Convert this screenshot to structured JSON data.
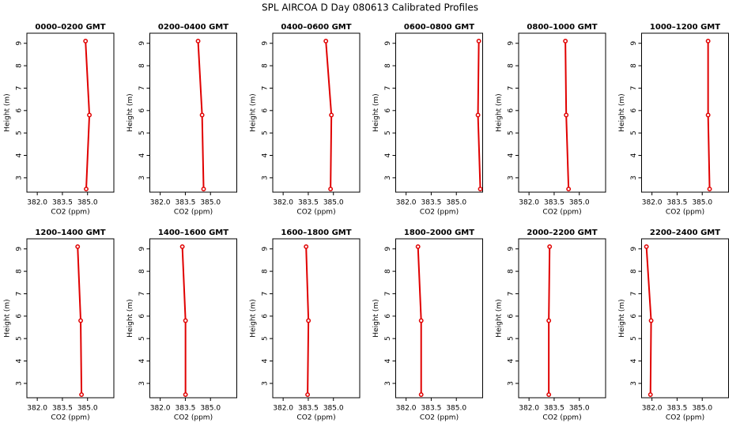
{
  "title": "SPL AIRCOA D  Day 080613  Calibrated Profiles",
  "chart_data": [
    {
      "type": "line",
      "title": "0000–0200 GMT",
      "x": [
        384.88,
        385.11,
        384.92
      ],
      "values": [
        9.1,
        5.8,
        2.5
      ],
      "color": "#e00000",
      "xlabel": "CO2 (ppm)",
      "ylabel": "Height (m)",
      "xlim": [
        381.38,
        386.57
      ],
      "ylim": [
        2.36,
        9.45
      ],
      "xticks": [
        {
          "value": 382,
          "label": "382.0"
        },
        {
          "value": 383.5,
          "label": "383.5"
        },
        {
          "value": 385,
          "label": "385.0"
        }
      ],
      "yticks": [
        3,
        4,
        5,
        6,
        7,
        8,
        9
      ]
    },
    {
      "type": "line",
      "title": "0200–0400 GMT",
      "x": [
        384.26,
        384.5,
        384.59
      ],
      "values": [
        9.1,
        5.8,
        2.5
      ],
      "color": "#e00000",
      "xlabel": "CO2 (ppm)",
      "ylabel": "Height (m)",
      "xlim": [
        381.38,
        386.57
      ],
      "ylim": [
        2.36,
        9.45
      ],
      "xticks": [
        {
          "value": 382,
          "label": "382.0"
        },
        {
          "value": 383.5,
          "label": "383.5"
        },
        {
          "value": 385,
          "label": "385.0"
        }
      ],
      "yticks": [
        3,
        4,
        5,
        6,
        7,
        8,
        9
      ]
    },
    {
      "type": "line",
      "title": "0400–0600 GMT",
      "x": [
        384.55,
        384.88,
        384.83
      ],
      "values": [
        9.1,
        5.8,
        2.5
      ],
      "color": "#e00000",
      "xlabel": "CO2 (ppm)",
      "ylabel": "Height (m)",
      "xlim": [
        381.38,
        386.57
      ],
      "ylim": [
        2.36,
        9.45
      ],
      "xticks": [
        {
          "value": 382,
          "label": "382.0"
        },
        {
          "value": 383.5,
          "label": "383.5"
        },
        {
          "value": 385,
          "label": "385.0"
        }
      ],
      "yticks": [
        3,
        4,
        5,
        6,
        7,
        8,
        9
      ]
    },
    {
      "type": "line",
      "title": "0600–0800 GMT",
      "x": [
        386.34,
        386.29,
        386.43
      ],
      "values": [
        9.1,
        5.8,
        2.5
      ],
      "color": "#e00000",
      "xlabel": "CO2 (ppm)",
      "ylabel": "Height (m)",
      "xlim": [
        381.38,
        386.57
      ],
      "ylim": [
        2.36,
        9.45
      ],
      "xticks": [
        {
          "value": 382,
          "label": "382.0"
        },
        {
          "value": 383.5,
          "label": "383.5"
        },
        {
          "value": 385,
          "label": "385.0"
        }
      ],
      "yticks": [
        3,
        4,
        5,
        6,
        7,
        8,
        9
      ]
    },
    {
      "type": "line",
      "title": "0800–1000 GMT",
      "x": [
        384.17,
        384.22,
        384.36
      ],
      "values": [
        9.1,
        5.8,
        2.5
      ],
      "color": "#e00000",
      "xlabel": "CO2 (ppm)",
      "ylabel": "Height (m)",
      "xlim": [
        381.38,
        386.57
      ],
      "ylim": [
        2.36,
        9.45
      ],
      "xticks": [
        {
          "value": 382,
          "label": "382.0"
        },
        {
          "value": 383.5,
          "label": "383.5"
        },
        {
          "value": 385,
          "label": "385.0"
        }
      ],
      "yticks": [
        3,
        4,
        5,
        6,
        7,
        8,
        9
      ]
    },
    {
      "type": "line",
      "title": "1000–1200 GMT",
      "x": [
        385.35,
        385.35,
        385.44
      ],
      "values": [
        9.1,
        5.8,
        2.5
      ],
      "color": "#e00000",
      "xlabel": "CO2 (ppm)",
      "ylabel": "Height (m)",
      "xlim": [
        381.38,
        386.57
      ],
      "ylim": [
        2.36,
        9.45
      ],
      "xticks": [
        {
          "value": 382,
          "label": "382.0"
        },
        {
          "value": 383.5,
          "label": "383.5"
        },
        {
          "value": 385,
          "label": "385.0"
        }
      ],
      "yticks": [
        3,
        4,
        5,
        6,
        7,
        8,
        9
      ]
    },
    {
      "type": "line",
      "title": "1200–1400 GMT",
      "x": [
        384.41,
        384.59,
        384.64
      ],
      "values": [
        9.1,
        5.8,
        2.5
      ],
      "color": "#e00000",
      "xlabel": "CO2 (ppm)",
      "ylabel": "Height (m)",
      "xlim": [
        381.38,
        386.57
      ],
      "ylim": [
        2.36,
        9.45
      ],
      "xticks": [
        {
          "value": 382,
          "label": "382.0"
        },
        {
          "value": 383.5,
          "label": "383.5"
        },
        {
          "value": 385,
          "label": "385.0"
        }
      ],
      "yticks": [
        3,
        4,
        5,
        6,
        7,
        8,
        9
      ]
    },
    {
      "type": "line",
      "title": "1400–1600 GMT",
      "x": [
        383.32,
        383.51,
        383.51
      ],
      "values": [
        9.1,
        5.8,
        2.5
      ],
      "color": "#e00000",
      "xlabel": "CO2 (ppm)",
      "ylabel": "Height (m)",
      "xlim": [
        381.38,
        386.57
      ],
      "ylim": [
        2.36,
        9.45
      ],
      "xticks": [
        {
          "value": 382,
          "label": "382.0"
        },
        {
          "value": 383.5,
          "label": "383.5"
        },
        {
          "value": 385,
          "label": "385.0"
        }
      ],
      "yticks": [
        3,
        4,
        5,
        6,
        7,
        8,
        9
      ]
    },
    {
      "type": "line",
      "title": "1600–1800 GMT",
      "x": [
        383.37,
        383.51,
        383.46
      ],
      "values": [
        9.1,
        5.8,
        2.5
      ],
      "color": "#e00000",
      "xlabel": "CO2 (ppm)",
      "ylabel": "Height (m)",
      "xlim": [
        381.38,
        386.57
      ],
      "ylim": [
        2.36,
        9.45
      ],
      "xticks": [
        {
          "value": 382,
          "label": "382.0"
        },
        {
          "value": 383.5,
          "label": "383.5"
        },
        {
          "value": 385,
          "label": "385.0"
        }
      ],
      "yticks": [
        3,
        4,
        5,
        6,
        7,
        8,
        9
      ]
    },
    {
      "type": "line",
      "title": "1800–2000 GMT",
      "x": [
        382.71,
        382.9,
        382.9
      ],
      "values": [
        9.1,
        5.8,
        2.5
      ],
      "color": "#e00000",
      "xlabel": "CO2 (ppm)",
      "ylabel": "Height (m)",
      "xlim": [
        381.38,
        386.57
      ],
      "ylim": [
        2.36,
        9.45
      ],
      "xticks": [
        {
          "value": 382,
          "label": "382.0"
        },
        {
          "value": 383.5,
          "label": "383.5"
        },
        {
          "value": 385,
          "label": "385.0"
        }
      ],
      "yticks": [
        3,
        4,
        5,
        6,
        7,
        8,
        9
      ]
    },
    {
      "type": "line",
      "title": "2000–2200 GMT",
      "x": [
        383.23,
        383.18,
        383.18
      ],
      "values": [
        9.1,
        5.8,
        2.5
      ],
      "color": "#e00000",
      "xlabel": "CO2 (ppm)",
      "ylabel": "Height (m)",
      "xlim": [
        381.38,
        386.57
      ],
      "ylim": [
        2.36,
        9.45
      ],
      "xticks": [
        {
          "value": 382,
          "label": "382.0"
        },
        {
          "value": 383.5,
          "label": "383.5"
        },
        {
          "value": 385,
          "label": "385.0"
        }
      ],
      "yticks": [
        3,
        4,
        5,
        6,
        7,
        8,
        9
      ]
    },
    {
      "type": "line",
      "title": "2200–2400 GMT",
      "x": [
        381.67,
        381.95,
        381.91
      ],
      "values": [
        9.1,
        5.8,
        2.5
      ],
      "color": "#e00000",
      "xlabel": "CO2 (ppm)",
      "ylabel": "Height (m)",
      "xlim": [
        381.38,
        386.57
      ],
      "ylim": [
        2.36,
        9.45
      ],
      "xticks": [
        {
          "value": 382,
          "label": "382.0"
        },
        {
          "value": 383.5,
          "label": "383.5"
        },
        {
          "value": 385,
          "label": "385.0"
        }
      ],
      "yticks": [
        3,
        4,
        5,
        6,
        7,
        8,
        9
      ]
    }
  ]
}
